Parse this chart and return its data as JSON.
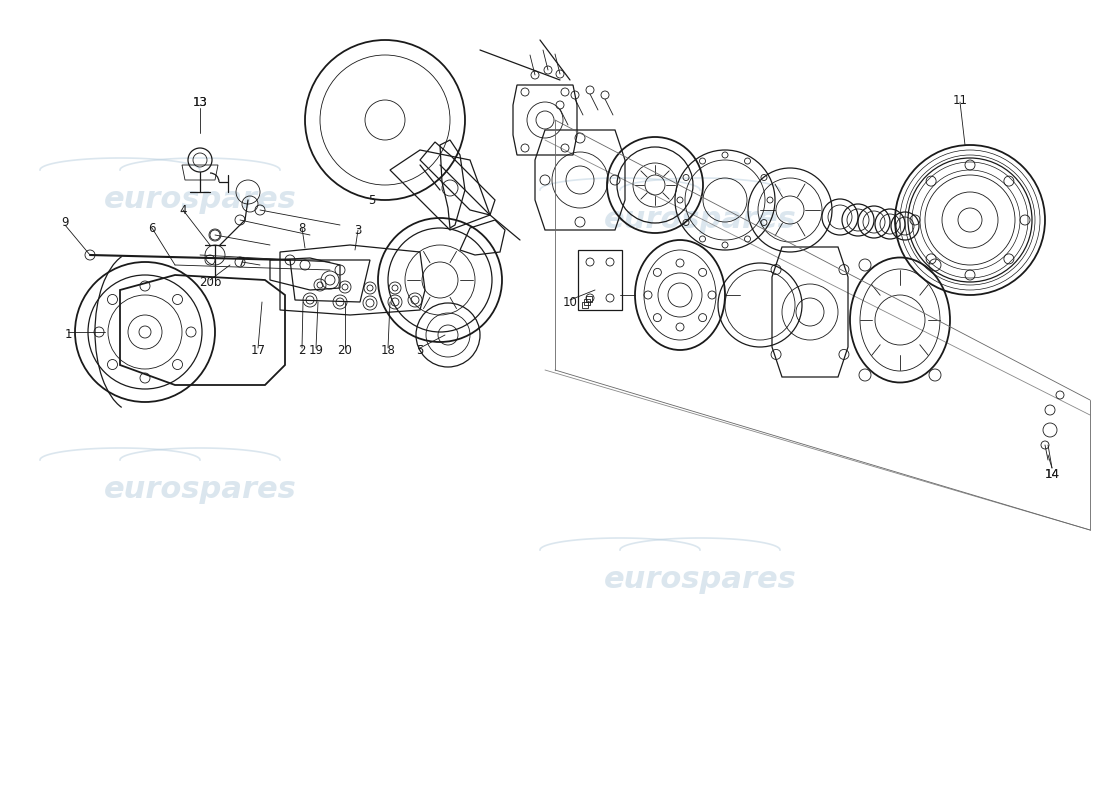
{
  "bg_color": "#ffffff",
  "line_color": "#1a1a1a",
  "watermark_color": "#b8cede",
  "figsize": [
    11.0,
    8.0
  ],
  "dpi": 100,
  "xlim": [
    0,
    1100
  ],
  "ylim": [
    0,
    800
  ]
}
